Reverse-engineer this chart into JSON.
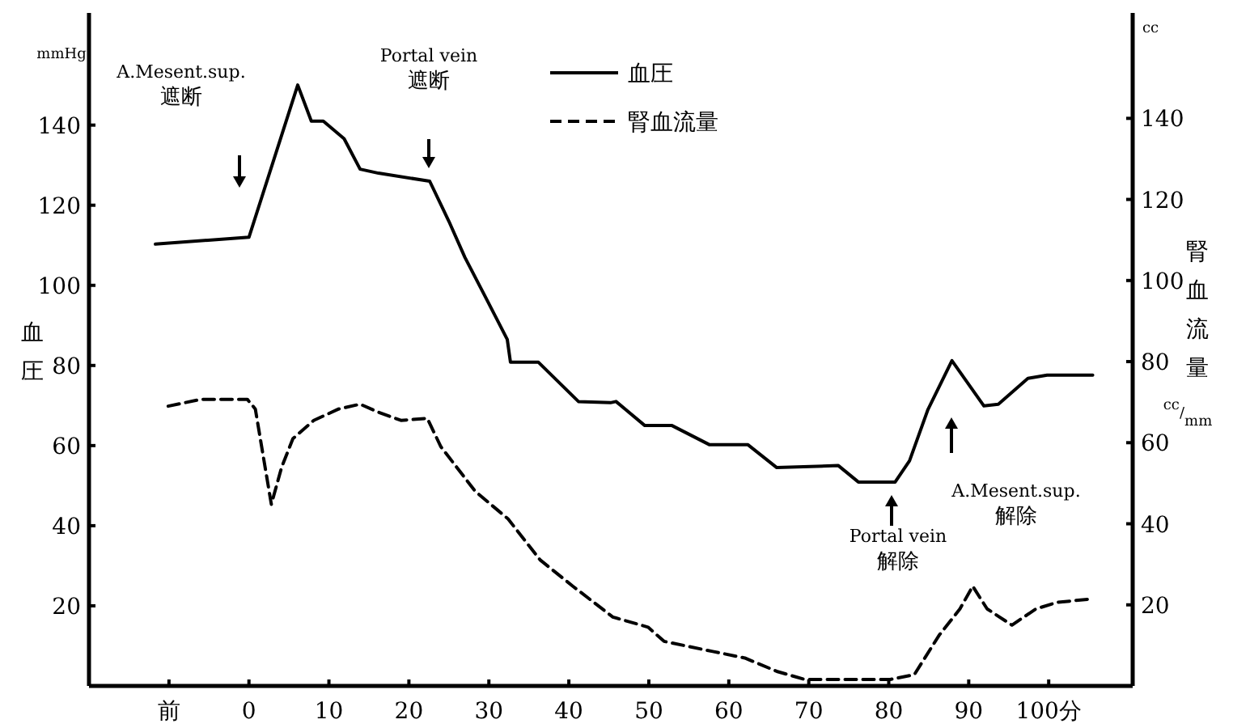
{
  "chart_data": {
    "type": "line",
    "ylabel": "血圧",
    "y2label": "腎血流量 $^{cc}$/$_{mm}$",
    "legend": "top",
    "grid": false,
    "xlim": [
      -20,
      110.5
    ],
    "xticks": [
      {
        "value": -10,
        "label": "前"
      },
      0,
      10,
      20,
      30,
      40,
      50,
      60,
      70,
      80,
      90,
      {
        "value": 100,
        "label": "100分"
      }
    ],
    "ylim": [
      0,
      168
    ],
    "yticks": [
      20,
      40,
      60,
      80,
      100,
      120,
      140
    ],
    "y2lim": [
      0,
      166
    ],
    "y2ticks": [
      20,
      40,
      60,
      80,
      100,
      120,
      140
    ],
    "series": [
      {
        "name": "血圧",
        "color": "#000000",
        "line_style": "solid",
        "x": [
          -11.7,
          0,
          6.1,
          7.8,
          9.3,
          11.9,
          13.9,
          16.2,
          22.6,
          25,
          27,
          29.7,
          32.3,
          32.7,
          36.2,
          41.2,
          45.2,
          45.9,
          49.5,
          52.9,
          57.6,
          62.4,
          66,
          73.7,
          76.2,
          80.8,
          82.6,
          84.9,
          87.9,
          91.9,
          93.7,
          97.4,
          99.8,
          105.5
        ],
        "values": [
          110.3,
          112,
          150,
          141,
          141,
          136.6,
          129,
          128,
          126,
          116,
          107,
          96.6,
          86.5,
          80.8,
          80.8,
          71,
          70.7,
          71,
          65,
          65,
          60.2,
          60.2,
          54.5,
          55,
          50.9,
          50.9,
          56.2,
          69,
          81.2,
          69.9,
          70.3,
          76.8,
          77.6,
          77.6
        ]
      },
      {
        "name": "腎血流量",
        "color": "#000000",
        "line_style": "dashed",
        "axis": "y2",
        "x": [
          -10.1,
          -6,
          -0.2,
          0.8,
          2.8,
          4.1,
          5.5,
          8.1,
          11.2,
          13.9,
          16.2,
          19,
          22.3,
          24,
          28.3,
          32.4,
          36.4,
          40.5,
          45.5,
          49.9,
          51.9,
          58,
          62,
          66,
          69.5,
          80.2,
          83.2,
          86.3,
          88.9,
          90.5,
          92.3,
          95.4,
          98.4,
          101,
          105
        ],
        "values": [
          69,
          70.7,
          70.7,
          68.3,
          44.8,
          54,
          61,
          65.5,
          68.3,
          69.5,
          67.5,
          65.5,
          66,
          59,
          48,
          41.2,
          31.1,
          24.6,
          17,
          14.5,
          11,
          8.5,
          6.9,
          3.6,
          1.6,
          1.6,
          2.8,
          12.5,
          19,
          24.6,
          19,
          15,
          19,
          20.6,
          21.4
        ]
      }
    ],
    "annotations": [
      "mmHg",
      "cc",
      "A.Mesent.sup.\n遮断",
      "Portal vein\n遮断",
      "Portal vein\n解除",
      "A.Mesent.sup.\n解除"
    ]
  }
}
